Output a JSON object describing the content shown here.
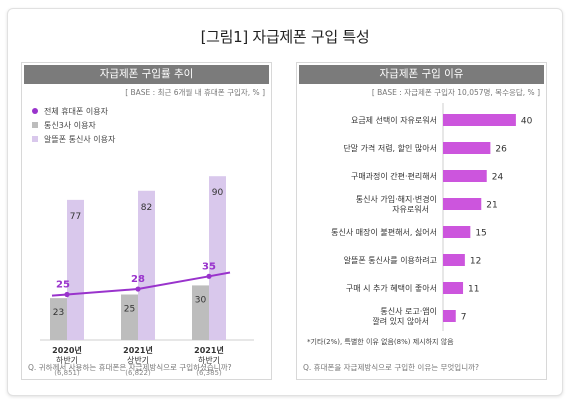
{
  "title": "[그림1] 자급제폰 구입 특성",
  "colors": {
    "purple": "#9933cc",
    "light_purple": "#d9c8ec",
    "gray_bar": "#bdbdbd",
    "magenta_bar": "#cc55dd",
    "head_gray": "#7b7b7b"
  },
  "chart_data": [
    {
      "type": "bar",
      "title": "자급제폰 구입률 추이",
      "base": "[ BASE : 최근 6개월 내 휴대폰 구입자, % ]",
      "categories": [
        "2020년\n하반기",
        "2021년\n상반기",
        "2021년\n하반기"
      ],
      "sample_sizes": [
        "(6,851)",
        "(6,822)",
        "(6,385)"
      ],
      "series": [
        {
          "name": "전체 휴대폰 이용자",
          "render": "line",
          "values": [
            25,
            28,
            35
          ]
        },
        {
          "name": "통신3사 이용자",
          "values": [
            23,
            25,
            30
          ]
        },
        {
          "name": "알뜰폰 통신사 이용자",
          "values": [
            77,
            82,
            90
          ]
        }
      ],
      "ylim": [
        0,
        100
      ],
      "question": "Q. 귀하께서 사용하는 휴대폰은 자급제방식으로 구입하셨습니까?"
    },
    {
      "type": "bar",
      "orientation": "horizontal",
      "title": "자급제폰 구입 이유",
      "base": "[ BASE : 자급제폰 구입자 10,057명, 복수응답, % ]",
      "categories": [
        "요금제 선택이 자유로워서",
        "단말 가격 저렴, 할인 많아서",
        "구매과정이 간편·편리해서",
        "통신사 가입·해지·변경이\n자유로워서",
        "통신사 매장이 불편해서, 싫어서",
        "알뜰폰 통신사를 이용하려고",
        "구매 시 추가 혜택이 좋아서",
        "통신사 로고·앱이\n깔려 있지 않아서"
      ],
      "values": [
        40,
        26,
        24,
        21,
        15,
        12,
        11,
        7
      ],
      "xlim": [
        0,
        45
      ],
      "footnote": "*기타(2%), 특별한 이유 없음(8%) 제시하지 않음",
      "question": "Q. 휴대폰을 자급제방식으로 구입한 이유는 무엇입니까?"
    }
  ]
}
